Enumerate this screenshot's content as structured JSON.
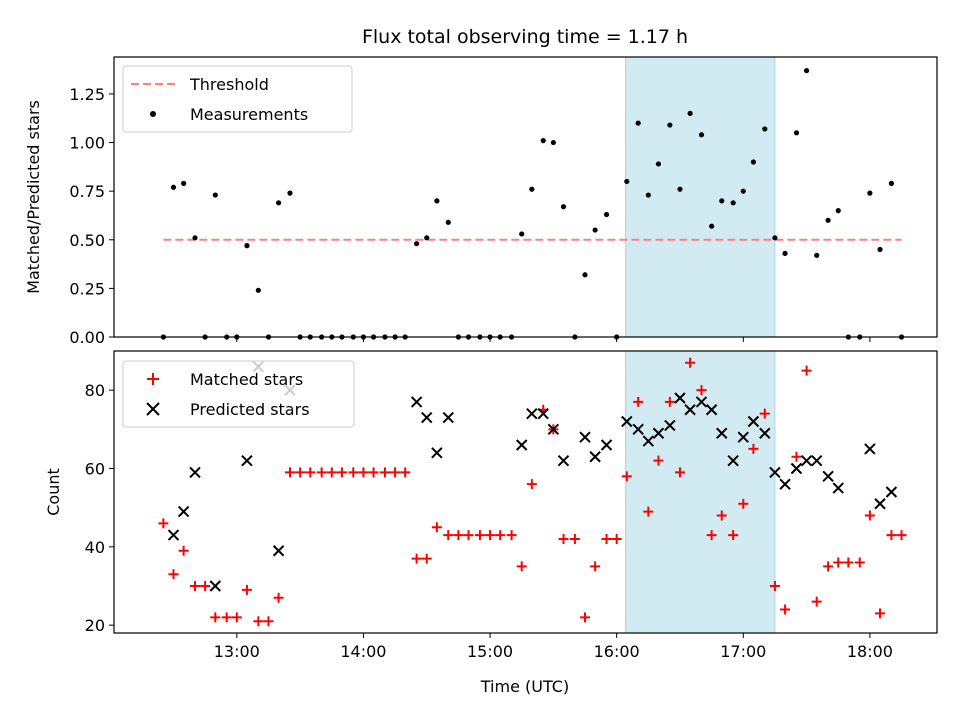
{
  "chart_data": {
    "title": "Flux total observing time = 1.17 h",
    "xlabel": "Time (UTC)",
    "xticks": [
      "13:00",
      "14:00",
      "15:00",
      "16:00",
      "17:00",
      "18:00"
    ],
    "xticks_hours": [
      13,
      14,
      15,
      16,
      17,
      18
    ],
    "xlim_hours": [
      12.03,
      18.53
    ],
    "shaded_region_hours": [
      16.07,
      17.25
    ],
    "colors": {
      "threshold": "#ff7f7f",
      "measurements": "#000000",
      "matched": "#ff0000",
      "predicted": "#000000",
      "shade": "#add8e6"
    },
    "top": {
      "type": "scatter",
      "ylabel": "Matched/Predicted stars",
      "ylim": [
        0,
        1.44
      ],
      "yticks": [
        "0.00",
        "0.25",
        "0.50",
        "0.75",
        "1.00",
        "1.25"
      ],
      "yticks_values": [
        0,
        0.25,
        0.5,
        0.75,
        1.0,
        1.25
      ],
      "legend": [
        "Threshold",
        "Measurements"
      ],
      "legend_loc": "upper left",
      "threshold": {
        "value": 0.5,
        "x_range_hours": [
          12.42,
          18.25
        ]
      },
      "measurements_x_hours": [
        12.42,
        12.5,
        12.58,
        12.67,
        12.75,
        12.83,
        12.92,
        13.0,
        13.08,
        13.17,
        13.25,
        13.33,
        13.42,
        13.5,
        13.58,
        13.67,
        13.75,
        13.83,
        13.92,
        14.0,
        14.08,
        14.17,
        14.25,
        14.33,
        14.42,
        14.5,
        14.58,
        14.67,
        14.75,
        14.83,
        14.92,
        15.0,
        15.08,
        15.17,
        15.25,
        15.33,
        15.42,
        15.5,
        15.58,
        15.67,
        15.75,
        15.83,
        15.92,
        16.0,
        16.08,
        16.17,
        16.25,
        16.33,
        16.42,
        16.5,
        16.58,
        16.67,
        16.75,
        16.83,
        16.92,
        17.0,
        17.08,
        17.17,
        17.25,
        17.33,
        17.42,
        17.5,
        17.58,
        17.67,
        17.75,
        17.83,
        17.92,
        18.0,
        18.08,
        18.17,
        18.25
      ],
      "measurements_y": [
        0.0,
        0.77,
        0.79,
        0.51,
        0.0,
        0.73,
        0.0,
        0.0,
        0.47,
        0.24,
        0.0,
        0.69,
        0.74,
        0.0,
        0.0,
        0.0,
        0.0,
        0.0,
        0.0,
        0.0,
        0.0,
        0.0,
        0.0,
        0.0,
        0.48,
        0.51,
        0.7,
        0.59,
        0.0,
        0.0,
        0.0,
        0.0,
        0.0,
        0.0,
        0.53,
        0.76,
        1.01,
        1.0,
        0.67,
        0.0,
        0.32,
        0.55,
        0.63,
        0.0,
        0.8,
        1.1,
        0.73,
        0.89,
        1.09,
        0.76,
        1.15,
        1.04,
        0.57,
        0.7,
        0.69,
        0.75,
        0.9,
        1.07,
        0.51,
        0.43,
        1.05,
        1.37,
        0.42,
        0.6,
        0.65,
        0.0,
        0.0,
        0.74,
        0.45,
        0.79,
        0.0
      ]
    },
    "bottom": {
      "type": "scatter",
      "ylabel": "Count",
      "ylim": [
        18,
        90
      ],
      "yticks": [
        "20",
        "40",
        "60",
        "80"
      ],
      "yticks_values": [
        20,
        40,
        60,
        80
      ],
      "legend": [
        "Matched stars",
        "Predicted stars"
      ],
      "legend_loc": "upper left",
      "matched_x_hours": [
        12.42,
        12.5,
        12.58,
        12.67,
        12.75,
        12.83,
        12.92,
        13.0,
        13.08,
        13.17,
        13.25,
        13.33,
        13.42,
        13.5,
        13.58,
        13.67,
        13.75,
        13.83,
        13.92,
        14.0,
        14.08,
        14.17,
        14.25,
        14.33,
        14.42,
        14.5,
        14.58,
        14.67,
        14.75,
        14.83,
        14.92,
        15.0,
        15.08,
        15.17,
        15.25,
        15.33,
        15.42,
        15.5,
        15.58,
        15.67,
        15.75,
        15.83,
        15.92,
        16.0,
        16.08,
        16.17,
        16.25,
        16.33,
        16.42,
        16.5,
        16.58,
        16.67,
        16.75,
        16.83,
        16.92,
        17.0,
        17.08,
        17.17,
        17.25,
        17.33,
        17.42,
        17.5,
        17.58,
        17.67,
        17.75,
        17.83,
        17.92,
        18.0,
        18.08,
        18.17,
        18.25
      ],
      "matched_y": [
        46,
        33,
        39,
        30,
        30,
        22,
        22,
        22,
        29,
        21,
        21,
        27,
        59,
        59,
        59,
        59,
        59,
        59,
        59,
        59,
        59,
        59,
        59,
        59,
        37,
        37,
        45,
        43,
        43,
        43,
        43,
        43,
        43,
        43,
        35,
        56,
        75,
        70,
        42,
        42,
        22,
        35,
        42,
        42,
        58,
        77,
        49,
        62,
        77,
        59,
        87,
        80,
        43,
        48,
        43,
        51,
        65,
        74,
        30,
        24,
        63,
        85,
        26,
        35,
        36,
        36,
        36,
        48,
        23,
        43,
        43
      ],
      "predicted_x_hours": [
        12.5,
        12.58,
        12.67,
        12.83,
        13.08,
        13.17,
        13.33,
        13.42,
        14.42,
        14.5,
        14.58,
        14.67,
        15.25,
        15.33,
        15.42,
        15.5,
        15.58,
        15.75,
        15.83,
        15.92,
        16.08,
        16.17,
        16.25,
        16.33,
        16.42,
        16.5,
        16.58,
        16.67,
        16.75,
        16.83,
        16.92,
        17.0,
        17.08,
        17.17,
        17.25,
        17.33,
        17.42,
        17.5,
        17.58,
        17.67,
        17.75,
        18.0,
        18.08,
        18.17
      ],
      "predicted_y": [
        43,
        49,
        59,
        30,
        62,
        86,
        39,
        80,
        77,
        73,
        64,
        73,
        66,
        74,
        74,
        70,
        62,
        68,
        63,
        66,
        72,
        70,
        67,
        69,
        71,
        78,
        75,
        77,
        75,
        69,
        62,
        68,
        72,
        69,
        59,
        56,
        60,
        62,
        62,
        58,
        55,
        65,
        51,
        54
      ]
    }
  }
}
